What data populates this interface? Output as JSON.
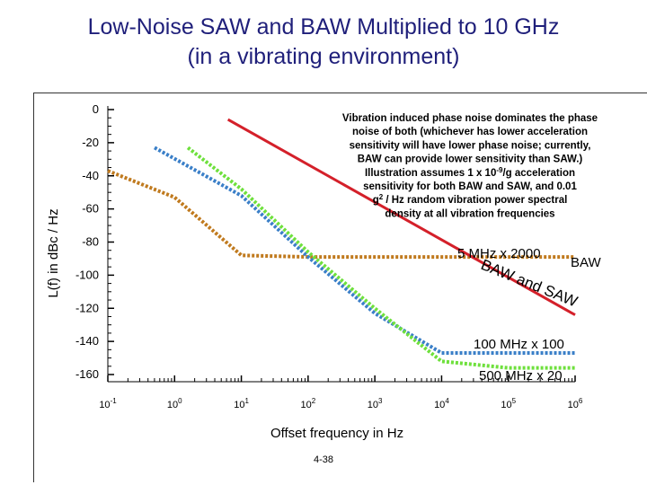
{
  "title_line1": "Low-Noise SAW and BAW Multiplied to 10 GHz",
  "title_line2": "(in a vibrating environment)",
  "page_number": "4-38",
  "chart_data": {
    "type": "line",
    "title": "Low-Noise SAW and BAW Multiplied to 10 GHz (in a vibrating environment)",
    "xlabel": "Offset frequency in Hz",
    "ylabel": "L(f) in dBc / Hz",
    "xscale": "log",
    "xlim_exp": [
      -1,
      6
    ],
    "ylim": [
      -160,
      0
    ],
    "x_ticks": [
      {
        "base": "10",
        "exp": "-1"
      },
      {
        "base": "10",
        "exp": "0"
      },
      {
        "base": "10",
        "exp": "1"
      },
      {
        "base": "10",
        "exp": "2"
      },
      {
        "base": "10",
        "exp": "3"
      },
      {
        "base": "10",
        "exp": "4"
      },
      {
        "base": "10",
        "exp": "5"
      },
      {
        "base": "10",
        "exp": "6"
      }
    ],
    "y_ticks": [
      "0",
      "-20",
      "-40",
      "-60",
      "-80",
      "-100",
      "-120",
      "-140",
      "-160"
    ],
    "annotation": "Vibration induced phase noise dominates the phase noise of both (whichever has lower acceleration sensitivity will have lower phase noise; currently, BAW can provide lower sensitivity than SAW.) Illustration assumes 1 x 10-9/g acceleration sensitivity for both BAW and SAW, and 0.01 g2 / Hz random vibration power spectral density at all vibration frequencies",
    "annotation_lines": [
      "Vibration induced phase noise dominates the phase",
      "noise of both (whichever has lower acceleration",
      "sensitivity will have lower phase noise; currently,",
      "BAW can provide lower sensitivity than SAW.)",
      "Illustration assumes 1 x 10-9/g acceleration",
      "sensitivity for both BAW and SAW, and 0.01",
      "g2 / Hz random vibration power spectral",
      "density at all vibration frequencies"
    ],
    "series": [
      {
        "name": "5 MHz x 2000 BAW",
        "color": "#c07a1e",
        "style": "dotted",
        "points": [
          [
            -1,
            -37
          ],
          [
            0,
            -53
          ],
          [
            1,
            -88
          ],
          [
            2,
            -89
          ],
          [
            3,
            -89
          ],
          [
            4,
            -89
          ],
          [
            5,
            -89
          ],
          [
            6,
            -89
          ]
        ]
      },
      {
        "name": "100 MHz x 100",
        "color": "#3a7fc8",
        "style": "dotted",
        "points": [
          [
            -0.3,
            -23
          ],
          [
            1,
            -52
          ],
          [
            2,
            -89
          ],
          [
            3,
            -123
          ],
          [
            4,
            -147
          ],
          [
            5,
            -147
          ],
          [
            6,
            -147
          ]
        ]
      },
      {
        "name": "500 MHz x 20",
        "color": "#6ee03c",
        "style": "dotted",
        "points": [
          [
            0.2,
            -23
          ],
          [
            1,
            -48
          ],
          [
            2,
            -86
          ],
          [
            3,
            -120
          ],
          [
            4,
            -152
          ],
          [
            5,
            -156
          ],
          [
            6,
            -156
          ]
        ]
      },
      {
        "name": "Vibration",
        "color": "#d4202a",
        "style": "solid",
        "points": [
          [
            0.8,
            -6
          ],
          [
            6,
            -124
          ]
        ]
      }
    ],
    "labels": {
      "top_line": "5 MHz x 2000",
      "top_right": "BAW",
      "rotated": "BAW and SAW",
      "mid": "100 MHz x 100",
      "low": "500 MHz x 20"
    }
  }
}
